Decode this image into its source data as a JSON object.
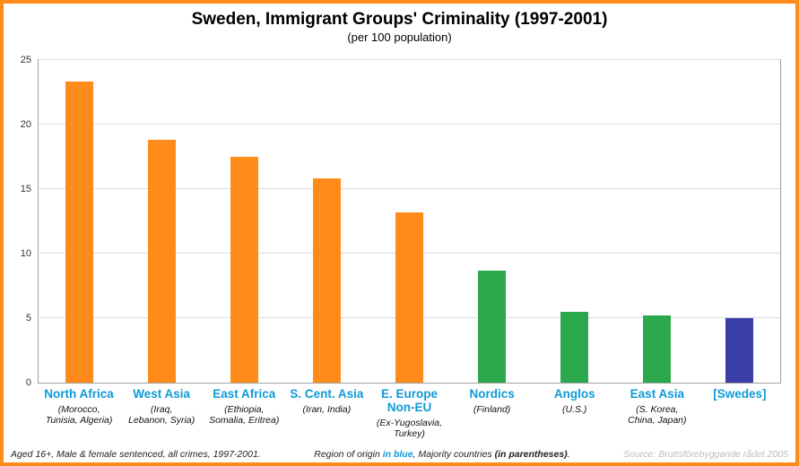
{
  "colors": {
    "bar_orange": "#FF8C1A",
    "bar_green": "#2BA84C",
    "bar_blue": "#3A3FA8",
    "label_blue": "#0D9AD7",
    "frame_orange": "#FF8C1A"
  },
  "chart_data": {
    "type": "bar",
    "title": "Sweden, Immigrant Groups' Criminality (1997-2001)",
    "subtitle": "(per 100 population)",
    "ylim": [
      0,
      25
    ],
    "yticks": [
      0,
      5,
      10,
      15,
      20,
      25
    ],
    "grid": true,
    "legend": "none",
    "categories": [
      {
        "label": "North Africa",
        "sublabel": "(Morocco,\nTunisia, Algeria)",
        "value": 23.3,
        "color": "bar_orange"
      },
      {
        "label": "West Asia",
        "sublabel": "(Iraq,\nLebanon, Syria)",
        "value": 18.8,
        "color": "bar_orange"
      },
      {
        "label": "East Africa",
        "sublabel": "(Ethiopia,\nSomalia, Eritrea)",
        "value": 17.5,
        "color": "bar_orange"
      },
      {
        "label": "S. Cent. Asia",
        "sublabel": "(Iran, India)",
        "value": 15.8,
        "color": "bar_orange"
      },
      {
        "label": "E. Europe\nNon-EU",
        "sublabel": "(Ex-Yugoslavia,\nTurkey)",
        "value": 13.2,
        "color": "bar_orange"
      },
      {
        "label": "Nordics",
        "sublabel": "(Finland)",
        "value": 8.7,
        "color": "bar_green"
      },
      {
        "label": "Anglos",
        "sublabel": "(U.S.)",
        "value": 5.5,
        "color": "bar_green"
      },
      {
        "label": "East Asia",
        "sublabel": "(S. Korea,\nChina, Japan)",
        "value": 5.2,
        "color": "bar_green"
      },
      {
        "label": "[Swedes]",
        "sublabel": "",
        "value": 5.0,
        "color": "bar_blue"
      }
    ]
  },
  "footer": {
    "left_note": "Aged 16+, Male & female sentenced, all crimes, 1997-2001.",
    "center_pre": "Region of origin ",
    "center_blue": "in blue",
    "center_mid": ",  Majority countries ",
    "center_paren": "(in parentheses)",
    "center_post": ".",
    "source": "Source: Brottsförebyggande rådet 2005"
  }
}
